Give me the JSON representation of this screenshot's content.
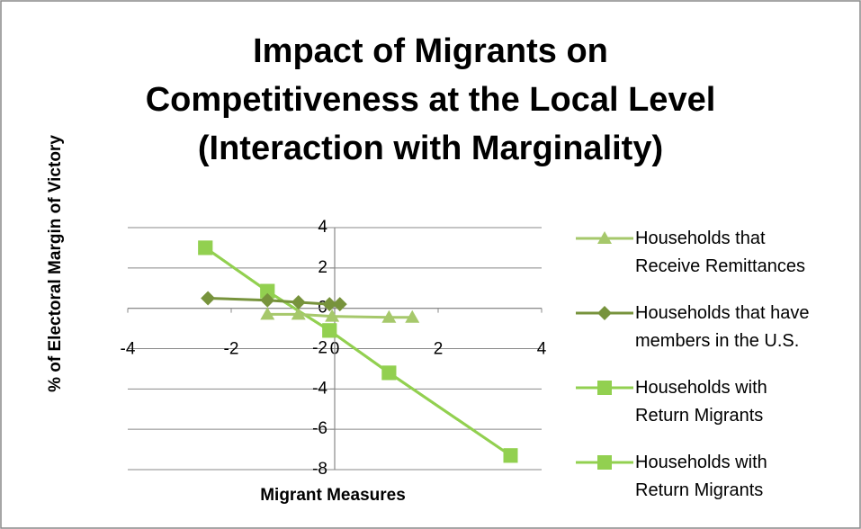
{
  "chart_data": {
    "type": "line",
    "title": [
      "Impact of Migrants on",
      "Competitiveness at the Local Level",
      "(Interaction with Marginality)"
    ],
    "x_label": "Migrant Measures",
    "y_label": "% of Electoral Margin of Victory",
    "xlim": [
      -4,
      4
    ],
    "xticks": [
      -4,
      -2,
      0,
      2,
      4
    ],
    "ylim": [
      -8,
      4
    ],
    "yticks": [
      -8,
      -6,
      -4,
      -2,
      0,
      2,
      4
    ],
    "grid": true,
    "legend": "right",
    "series": [
      {
        "name": "Households that Receive Remittances",
        "color": "#a6c86b",
        "marker": "triangle",
        "x": [
          -1.3,
          -0.7,
          -0.05,
          1.05,
          1.5
        ],
        "values": [
          -0.3,
          -0.3,
          -0.4,
          -0.45,
          -0.45
        ]
      },
      {
        "name": "Households that have members in the U.S.",
        "color": "#77933c",
        "marker": "diamond",
        "x": [
          -2.45,
          -1.3,
          -0.7,
          -0.1,
          0.1
        ],
        "values": [
          0.5,
          0.4,
          0.3,
          0.2,
          0.2
        ]
      },
      {
        "name": "Households with Return Migrants",
        "color": "#92d050",
        "marker": "square",
        "x": [
          -2.5,
          -1.3,
          -0.1,
          1.05,
          3.4
        ],
        "values": [
          3.0,
          0.85,
          -1.1,
          -3.2,
          -7.3
        ]
      },
      {
        "name": "Households with Return Migrants",
        "color": "#92d050",
        "marker": "square",
        "x": [
          -2.5,
          -1.3,
          -0.1,
          1.05,
          3.4
        ],
        "values": [
          3.0,
          0.85,
          -1.1,
          -3.2,
          -7.3
        ]
      }
    ]
  }
}
